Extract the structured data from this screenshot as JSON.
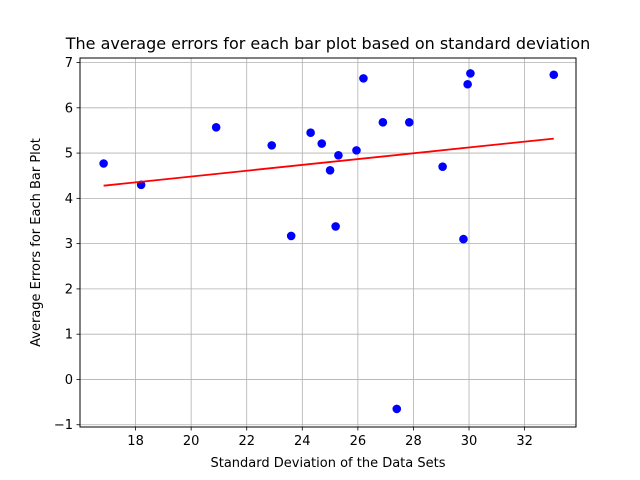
{
  "chart_data": {
    "type": "scatter",
    "title": "The average errors for each bar plot based on standard deviation",
    "xlabel": "Standard Deviation of the Data Sets",
    "ylabel": "Average Errors for Each Bar Plot",
    "xlim": [
      16.0,
      33.85
    ],
    "ylim": [
      -1.05,
      7.1
    ],
    "xticks": [
      18,
      20,
      22,
      24,
      26,
      28,
      30,
      32
    ],
    "yticks": [
      -1,
      0,
      1,
      2,
      3,
      4,
      5,
      6,
      7
    ],
    "grid": true,
    "series": [
      {
        "type": "scatter",
        "color": "#0000ff",
        "points": [
          {
            "x": 16.85,
            "y": 4.77
          },
          {
            "x": 18.2,
            "y": 4.3
          },
          {
            "x": 20.9,
            "y": 5.57
          },
          {
            "x": 22.9,
            "y": 5.17
          },
          {
            "x": 23.6,
            "y": 3.17
          },
          {
            "x": 24.3,
            "y": 5.45
          },
          {
            "x": 24.7,
            "y": 5.21
          },
          {
            "x": 25.0,
            "y": 4.62
          },
          {
            "x": 25.3,
            "y": 4.95
          },
          {
            "x": 25.2,
            "y": 3.38
          },
          {
            "x": 25.95,
            "y": 5.06
          },
          {
            "x": 26.2,
            "y": 6.65
          },
          {
            "x": 26.9,
            "y": 5.68
          },
          {
            "x": 27.85,
            "y": 5.68
          },
          {
            "x": 27.4,
            "y": -0.65
          },
          {
            "x": 29.05,
            "y": 4.7
          },
          {
            "x": 29.8,
            "y": 3.1
          },
          {
            "x": 29.95,
            "y": 6.52
          },
          {
            "x": 30.05,
            "y": 6.76
          },
          {
            "x": 33.05,
            "y": 6.73
          }
        ]
      },
      {
        "type": "line",
        "color": "#ff0000",
        "points": [
          {
            "x": 16.85,
            "y": 4.28
          },
          {
            "x": 33.05,
            "y": 5.32
          }
        ]
      }
    ]
  }
}
